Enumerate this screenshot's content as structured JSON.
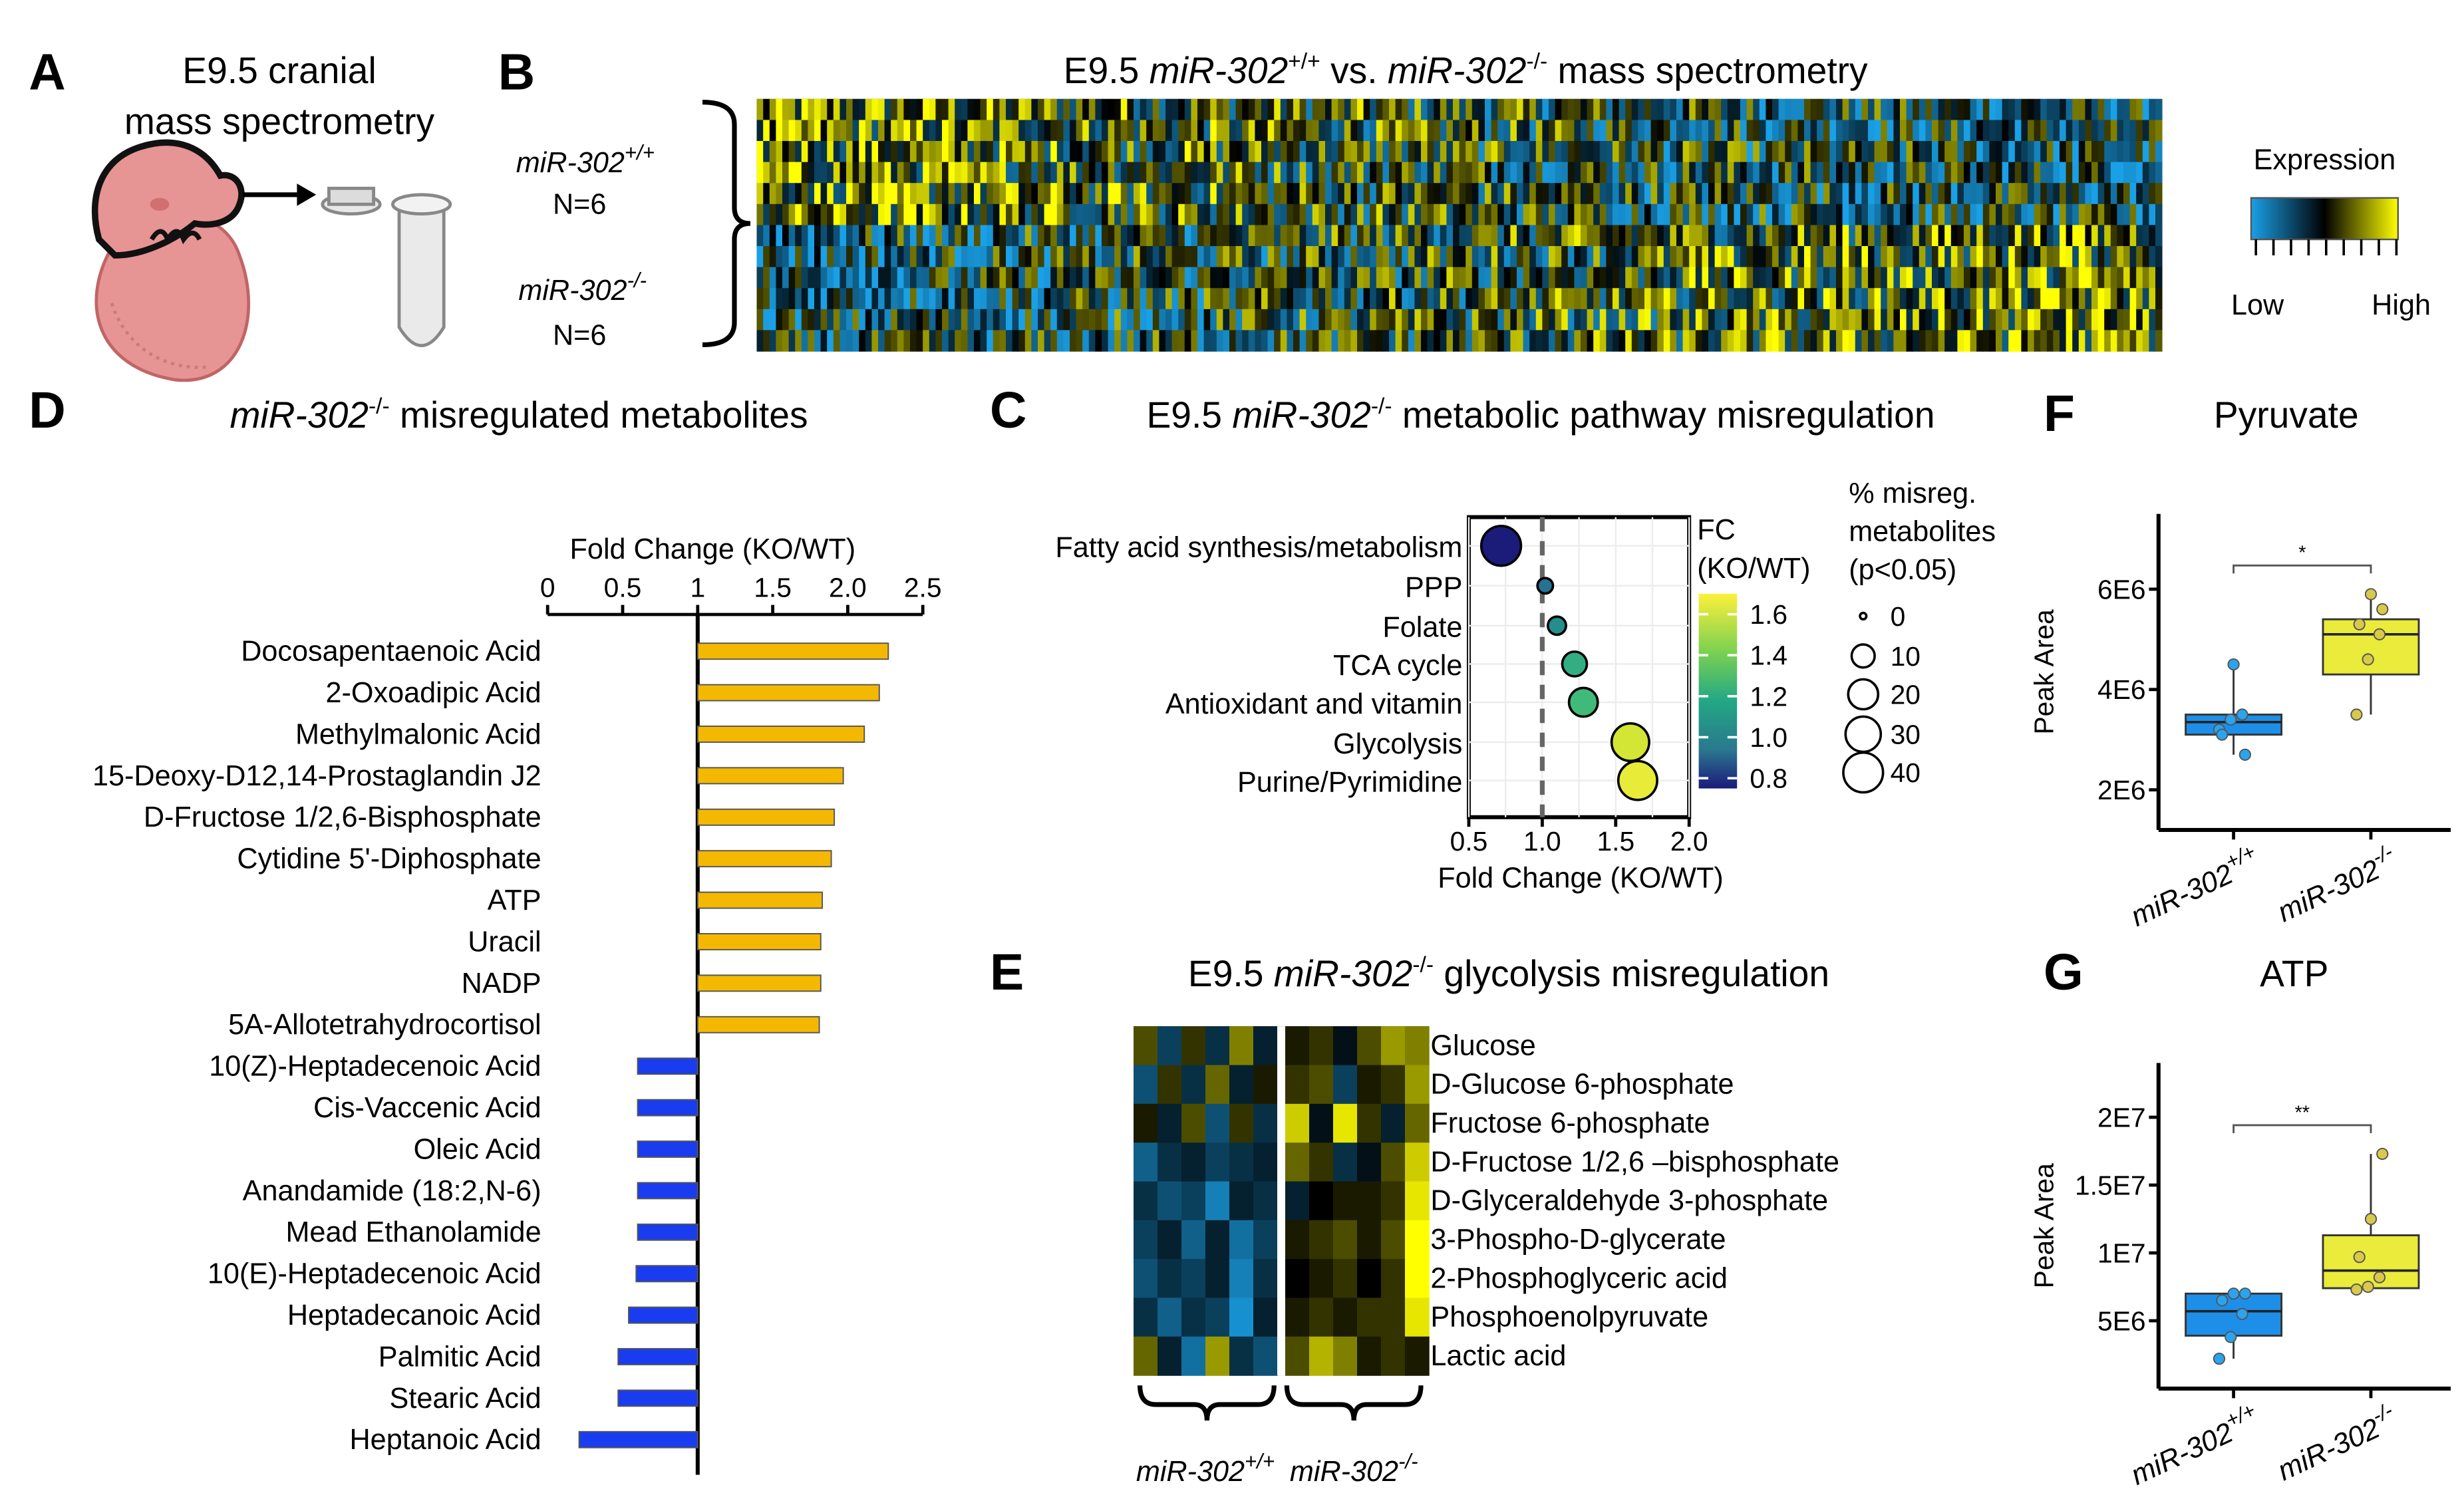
{
  "colors": {
    "up_bar": "#f5b800",
    "down_bar": "#1a3cf0",
    "box_wt": "#1e8fe8",
    "box_ko": "#eaeb3a",
    "heat_low": "#1aa0e6",
    "heat_mid": "#000000",
    "heat_high": "#ffff00"
  },
  "panel_labels": {
    "a": "A",
    "b": "B",
    "c": "C",
    "d": "D",
    "e": "E",
    "f": "F",
    "g": "G"
  },
  "panel_a": {
    "line1": "E9.5 cranial",
    "line2": "mass spectrometry"
  },
  "panel_b": {
    "title_pre": "E9.5 ",
    "g1": "miR-302",
    "g1_sup": "+/+",
    "mid": " vs. ",
    "g2": "miR-302",
    "g2_sup": "-/-",
    "title_post": " mass spectrometry",
    "group1_name": "miR-302",
    "group1_sup": "+/+",
    "group1_n": "N=6",
    "group2_name": "miR-302",
    "group2_sup": "-/-",
    "group2_n": "N=6",
    "legend_title": "Expression",
    "legend_low": "Low",
    "legend_high": "High"
  },
  "panel_c": {
    "title_pre": "E9.5 ",
    "title_gene": "miR-302",
    "title_sup": "-/-",
    "title_post": " metabolic pathway misregulation"
  },
  "panel_d": {
    "title_gene": "miR-302",
    "title_sup": "-/-",
    "title_post": " misregulated metabolites"
  },
  "panel_e": {
    "title_pre": "E9.5 ",
    "title_gene": "miR-302",
    "title_sup": "-/-",
    "title_post": " glycolysis misregulation",
    "g1": "miR-302",
    "g1_sup": "+/+",
    "g2": "miR-302",
    "g2_sup": "-/-"
  },
  "panel_f": {
    "title": "Pyruvate"
  },
  "panel_g": {
    "title": "ATP"
  },
  "chart_data": [
    {
      "panel": "D",
      "type": "bar",
      "orientation": "horizontal",
      "title": "miR-302-/- misregulated metabolites",
      "xlabel": "Fold Change (KO/WT)",
      "xlim": [
        0,
        2.5
      ],
      "baseline": 1,
      "xticks": [
        "0",
        "0.5",
        "1",
        "1.5",
        "2.0",
        "2.5"
      ],
      "xtick_values": [
        0,
        0.5,
        1,
        1.5,
        2.0,
        2.5
      ],
      "categories": [
        "Docosapentaenoic Acid",
        "2-Oxoadipic Acid",
        "Methylmalonic Acid",
        "15-Deoxy-D12,14-Prostaglandin J2",
        "D-Fructose 1/2,6-Bisphosphate",
        "Cytidine 5'-Diphosphate",
        "ATP",
        "Uracil",
        "NADP",
        "5A-Allotetrahydrocortisol",
        "10(Z)-Heptadecenoic Acid",
        "Cis-Vaccenic Acid",
        "Oleic Acid",
        "Anandamide (18:2,N-6)",
        "Mead Ethanolamide",
        "10(E)-Heptadecenoic Acid",
        "Heptadecanoic Acid",
        "Palmitic Acid",
        "Stearic Acid",
        "Heptanoic Acid"
      ],
      "values": [
        2.27,
        2.21,
        2.11,
        1.97,
        1.91,
        1.89,
        1.83,
        1.82,
        1.82,
        1.81,
        0.6,
        0.6,
        0.6,
        0.6,
        0.6,
        0.59,
        0.54,
        0.47,
        0.47,
        0.21
      ]
    },
    {
      "panel": "C",
      "type": "scatter",
      "title": "E9.5 miR-302-/- metabolic pathway misregulation",
      "xlabel": "Fold Change (KO/WT)",
      "xlim": [
        0.5,
        2.0
      ],
      "xticks": [
        "0.5",
        "1.0",
        "1.5",
        "2.0"
      ],
      "xtick_values": [
        0.5,
        1.0,
        1.5,
        2.0
      ],
      "reference_line": 1.0,
      "categories": [
        "Fatty acid synthesis/metabolism",
        "PPP",
        "Folate",
        "TCA cycle",
        "Antioxidant and vitamin",
        "Glycolysis",
        "Purine/Pyrimidine"
      ],
      "fc": [
        0.72,
        1.02,
        1.1,
        1.22,
        1.28,
        1.6,
        1.65
      ],
      "pct_misreg": [
        40,
        3,
        5,
        12,
        18,
        35,
        38
      ],
      "color_legend_title": [
        "FC",
        "(KO/WT)"
      ],
      "color_range": [
        0.75,
        1.7
      ],
      "color_ticks": [
        "1.6",
        "1.4",
        "1.2",
        "1.0",
        "0.8"
      ],
      "color_tick_values": [
        1.6,
        1.4,
        1.2,
        1.0,
        0.8
      ],
      "size_legend_title": [
        "% misreg.",
        "metabolites",
        "(p<0.05)"
      ],
      "size_ticks": [
        "0",
        "10",
        "20",
        "30",
        "40"
      ],
      "size_tick_values": [
        0,
        10,
        20,
        30,
        40
      ]
    },
    {
      "panel": "F",
      "type": "box",
      "title": "Pyruvate",
      "ylabel": "Peak Area",
      "ylim": [
        1200000,
        7500000
      ],
      "yticks": [
        "6E6",
        "4E6",
        "2E6"
      ],
      "ytick_values": [
        6000000,
        4000000,
        2000000
      ],
      "groups": [
        "miR-302",
        "miR-302"
      ],
      "group_sups": [
        "+/+",
        "-/-"
      ],
      "boxes": [
        {
          "min": 2700000,
          "q1": 3100000,
          "median": 3350000,
          "q3": 3500000,
          "max": 4500000,
          "points": [
            3200000,
            3400000,
            3500000,
            3100000,
            4500000,
            2700000
          ]
        },
        {
          "min": 3500000,
          "q1": 4300000,
          "median": 5100000,
          "q3": 5400000,
          "max": 5900000,
          "points": [
            3500000,
            4600000,
            5100000,
            5300000,
            5900000,
            5600000
          ]
        }
      ],
      "significance": "*"
    },
    {
      "panel": "G",
      "type": "box",
      "title": "ATP",
      "ylabel": "Peak Area",
      "ylim": [
        0,
        24000000
      ],
      "yticks": [
        "2E7",
        "1.5E7",
        "1E7",
        "5E6"
      ],
      "ytick_values": [
        20000000,
        15000000,
        10000000,
        5000000
      ],
      "groups": [
        "miR-302",
        "miR-302"
      ],
      "group_sups": [
        "+/+",
        "-/-"
      ],
      "boxes": [
        {
          "min": 2200000,
          "q1": 3900000,
          "median": 5700000,
          "q3": 7000000,
          "max": 7000000,
          "points": [
            2200000,
            3800000,
            5500000,
            6500000,
            7000000,
            7000000
          ]
        },
        {
          "min": 7200000,
          "q1": 7400000,
          "median": 8700000,
          "q3": 11300000,
          "max": 17300000,
          "points": [
            7300000,
            7500000,
            8200000,
            9700000,
            12500000,
            17300000
          ]
        }
      ],
      "significance": "**"
    },
    {
      "panel": "E",
      "type": "heatmap",
      "title": "E9.5 miR-302-/- glycolysis misregulation",
      "rows": [
        "Glucose",
        "D-Glucose 6-phosphate",
        "Fructose 6-phosphate",
        "D-Fructose 1/2,6 –bisphosphate",
        "D-Glyceraldehyde 3-phosphate",
        "3-Phospho-D-glycerate",
        "2-Phosphoglyceric acid",
        "Phosphoenolpyruvate",
        "Lactic acid"
      ],
      "column_groups": [
        "miR-302+/+",
        "miR-302-/-"
      ],
      "n_per_group": 6,
      "values": [
        [
          0.3,
          -0.4,
          0.2,
          -0.3,
          0.5,
          -0.2,
          0.1,
          0.2,
          -0.1,
          0.3,
          0.6,
          0.5
        ],
        [
          -0.5,
          0.2,
          -0.3,
          0.4,
          -0.2,
          0.1,
          0.2,
          0.3,
          -0.4,
          0.1,
          0.2,
          0.6
        ],
        [
          0.1,
          -0.2,
          0.3,
          -0.5,
          0.2,
          -0.3,
          0.8,
          -0.1,
          0.9,
          0.2,
          -0.2,
          0.4
        ],
        [
          -0.6,
          -0.3,
          -0.2,
          -0.4,
          -0.3,
          -0.2,
          0.4,
          0.2,
          -0.3,
          -0.1,
          0.3,
          0.8
        ],
        [
          -0.3,
          -0.5,
          -0.4,
          -0.8,
          -0.2,
          -0.3,
          -0.2,
          0.0,
          0.1,
          0.1,
          0.2,
          0.9
        ],
        [
          -0.4,
          -0.2,
          -0.6,
          -0.2,
          -0.7,
          -0.4,
          0.1,
          0.2,
          0.3,
          0.1,
          0.3,
          1.0
        ],
        [
          -0.5,
          -0.3,
          -0.4,
          -0.2,
          -0.8,
          -0.3,
          0.0,
          0.1,
          0.2,
          0.0,
          0.2,
          1.0
        ],
        [
          -0.3,
          -0.6,
          -0.3,
          -0.4,
          -0.9,
          -0.2,
          0.1,
          0.2,
          0.1,
          0.2,
          0.2,
          0.9
        ],
        [
          0.4,
          -0.2,
          -0.7,
          0.6,
          -0.3,
          -0.5,
          0.3,
          0.7,
          0.5,
          0.1,
          0.2,
          0.1
        ]
      ]
    },
    {
      "panel": "B",
      "type": "heatmap",
      "title": "E9.5 miR-302+/+ vs. miR-302-/- mass spectrometry",
      "row_groups": [
        "miR-302+/+ N=6",
        "miR-302-/- N=6"
      ],
      "n_rows": 12,
      "values": "dense metabolite-by-sample expression matrix (hundreds of metabolites); individual cell values not legible"
    }
  ]
}
